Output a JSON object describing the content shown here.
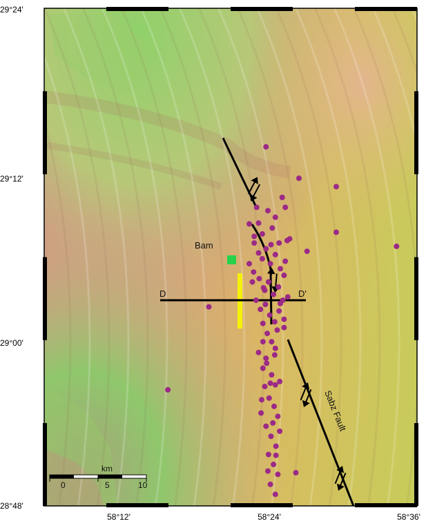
{
  "map": {
    "latitude_labels": [
      "29°24'",
      "29°12'",
      "29°00'",
      "28°48'"
    ],
    "longitude_labels": [
      "58°12'",
      "58°24'",
      "58°36'"
    ],
    "place_labels": {
      "city": "Bam",
      "profile_start": "D",
      "profile_end": "D'",
      "fault_name": "Sabz Fault"
    },
    "scale_bar": {
      "unit": "km",
      "ticks": [
        "0",
        "5",
        "10"
      ]
    },
    "colors": {
      "event_markers": "#9b2a86",
      "bam_marker": "#27d24a",
      "rupture_zone": "#f5f20a",
      "fault_lines": "#000000"
    },
    "epicenters": [
      [
        58.357,
        29.233
      ],
      [
        58.383,
        29.172
      ],
      [
        58.388,
        29.16
      ],
      [
        58.345,
        29.141
      ],
      [
        58.351,
        29.128
      ],
      [
        58.367,
        29.135
      ],
      [
        58.378,
        29.117
      ],
      [
        58.391,
        29.12
      ],
      [
        58.338,
        29.117
      ],
      [
        58.345,
        29.105
      ],
      [
        58.351,
        29.098
      ],
      [
        58.357,
        29.11
      ],
      [
        58.364,
        29.092
      ],
      [
        58.372,
        29.103
      ],
      [
        58.38,
        29.086
      ],
      [
        58.388,
        29.095
      ],
      [
        58.33,
        29.092
      ],
      [
        58.337,
        29.082
      ],
      [
        58.346,
        29.074
      ],
      [
        58.353,
        29.063
      ],
      [
        58.361,
        29.07
      ],
      [
        58.369,
        29.055
      ],
      [
        58.377,
        29.064
      ],
      [
        58.384,
        29.048
      ],
      [
        58.341,
        29.048
      ],
      [
        58.348,
        29.037
      ],
      [
        58.356,
        29.043
      ],
      [
        58.363,
        29.03
      ],
      [
        58.371,
        29.022
      ],
      [
        58.378,
        29.035
      ],
      [
        58.386,
        29.015
      ],
      [
        58.352,
        29.02
      ],
      [
        58.359,
        29.008
      ],
      [
        58.366,
        28.998
      ],
      [
        58.372,
        28.99
      ],
      [
        58.352,
        28.998
      ],
      [
        58.345,
        28.985
      ],
      [
        58.358,
        28.972
      ],
      [
        58.366,
        28.958
      ],
      [
        58.372,
        28.946
      ],
      [
        58.355,
        28.944
      ],
      [
        58.362,
        28.93
      ],
      [
        58.37,
        28.92
      ],
      [
        58.376,
        28.908
      ],
      [
        58.349,
        28.912
      ],
      [
        58.357,
        28.896
      ],
      [
        58.365,
        28.884
      ],
      [
        58.373,
        28.872
      ],
      [
        58.361,
        28.862
      ],
      [
        58.369,
        28.85
      ],
      [
        58.376,
        28.838
      ],
      [
        58.364,
        28.826
      ],
      [
        58.372,
        28.814
      ],
      [
        58.352,
        28.966
      ],
      [
        58.364,
        28.948
      ],
      [
        58.33,
        29.14
      ],
      [
        58.338,
        29.125
      ],
      [
        58.372,
        29.148
      ],
      [
        58.36,
        29.156
      ],
      [
        58.335,
        29.07
      ],
      [
        58.355,
        29.06
      ],
      [
        58.38,
        29.044
      ],
      [
        58.386,
        29.025
      ],
      [
        58.357,
        28.978
      ],
      [
        58.371,
        28.982
      ],
      [
        58.379,
        28.95
      ],
      [
        58.35,
        28.928
      ],
      [
        58.368,
        28.9
      ],
      [
        58.379,
        28.89
      ],
      [
        58.36,
        28.842
      ],
      [
        58.373,
        28.861
      ],
      [
        58.41,
        29.195
      ],
      [
        58.47,
        29.185
      ],
      [
        58.47,
        29.13
      ],
      [
        58.423,
        29.107
      ],
      [
        58.567,
        29.113
      ],
      [
        58.199,
        28.94
      ],
      [
        58.265,
        29.04
      ],
      [
        58.405,
        28.84
      ],
      [
        58.395,
        29.122
      ],
      [
        58.386,
        29.078
      ],
      [
        58.392,
        29.052
      ],
      [
        58.375,
        29.012
      ],
      [
        58.365,
        29.115
      ],
      [
        58.342,
        29.16
      ]
    ]
  }
}
